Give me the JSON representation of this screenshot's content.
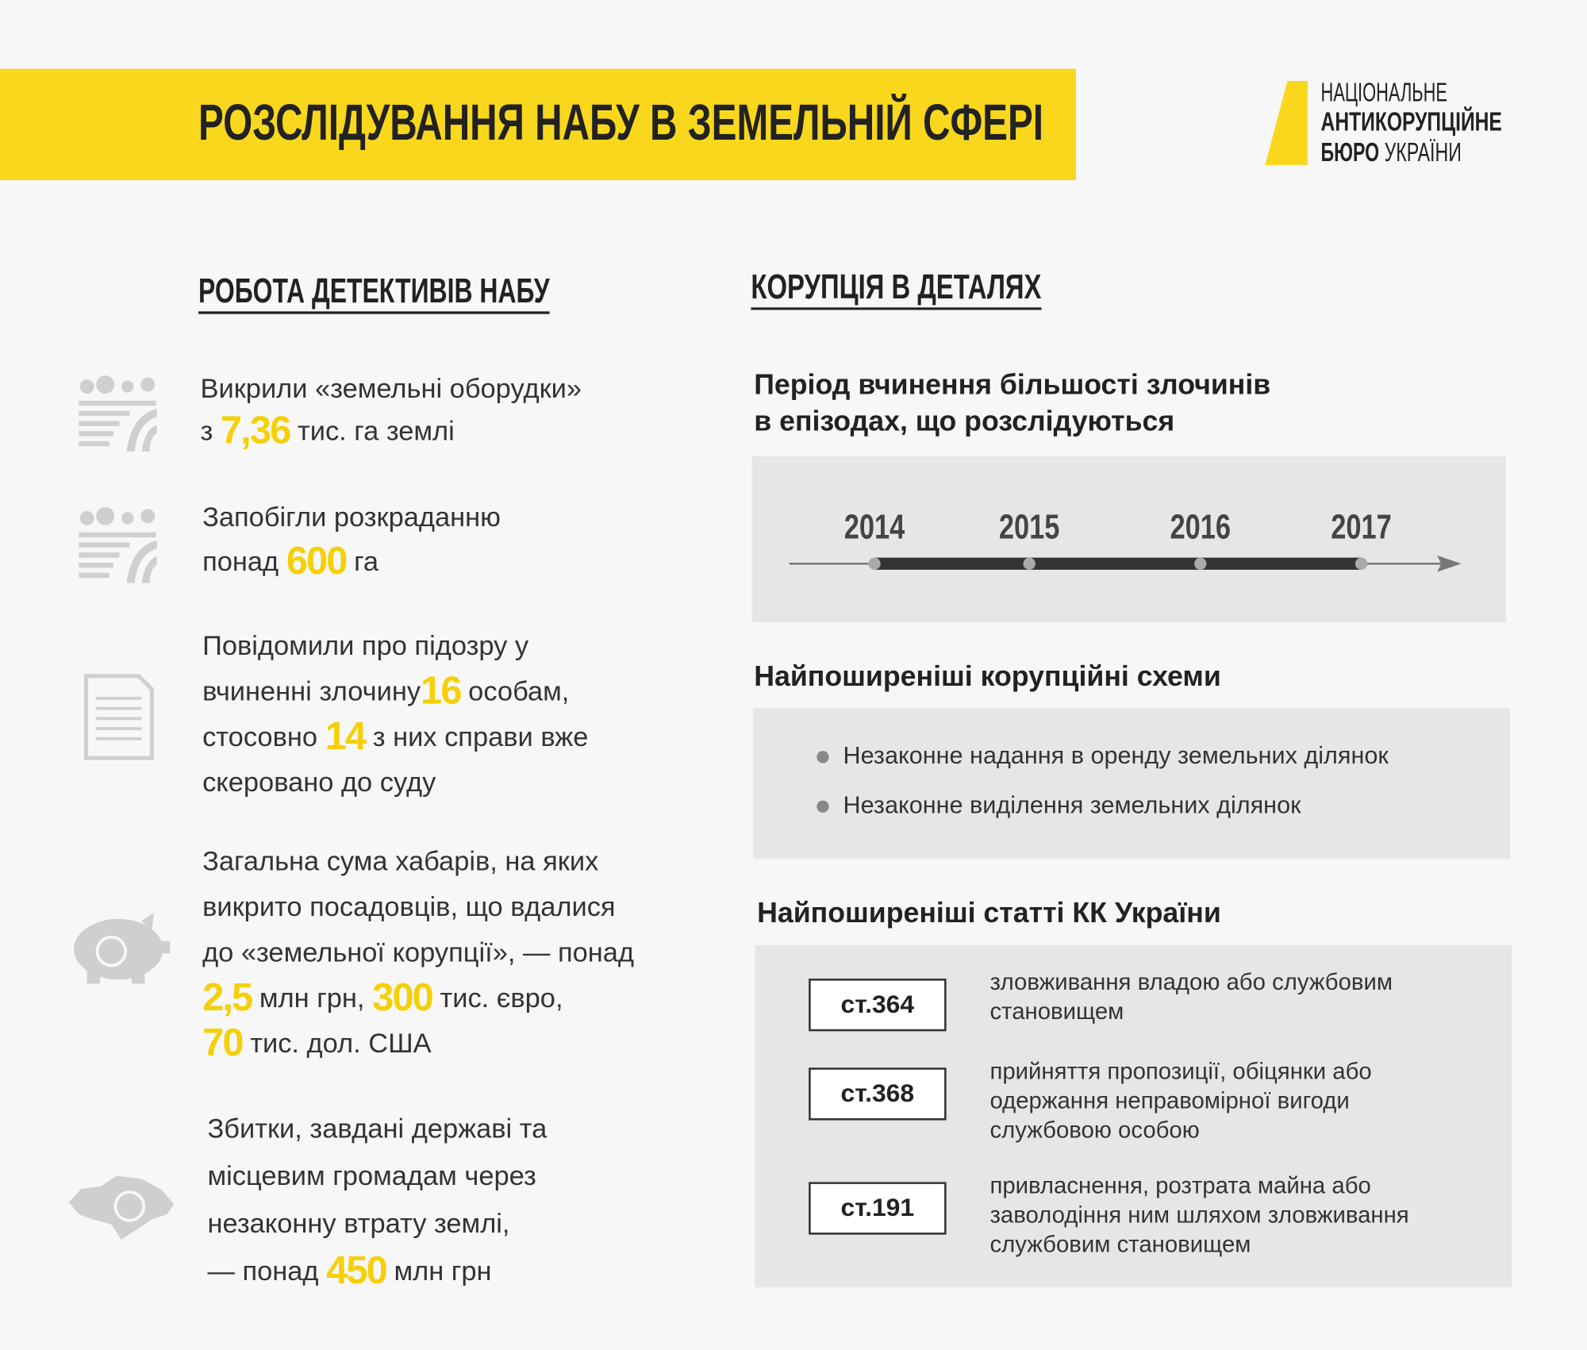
{
  "header": {
    "title": "РОЗСЛІДУВАННЯ НАБУ В ЗЕМЕЛЬНІЙ СФЕРІ",
    "logo": [
      [
        "НАЦІОНАЛЬНЕ"
      ],
      [
        "АНТИКОРУПЦІЙНЕ"
      ],
      [
        "БЮРО",
        " УКРАЇНИ"
      ]
    ]
  },
  "left": {
    "heading": "РОБОТА ДЕТЕКТИВІВ НАБУ",
    "items": [
      {
        "lines": [
          [
            "Викрили «земельні оборудки»"
          ],
          [
            "з ",
            {
              "em": "7,36"
            },
            " тис. га землі"
          ]
        ]
      },
      {
        "lines": [
          [
            "Запобігли розкраданню"
          ],
          [
            "понад ",
            {
              "em": "600"
            },
            " га"
          ]
        ]
      },
      {
        "lines": [
          [
            "Повідомили про підозру у"
          ],
          [
            "вчиненні злочину",
            {
              "em": "16"
            },
            " особам,"
          ],
          [
            "стосовно ",
            {
              "em": "14"
            },
            " з них справи вже"
          ],
          [
            "скеровано до суду"
          ]
        ]
      },
      {
        "lines": [
          [
            "Загальна сума хабарів, на яких"
          ],
          [
            "викрито посадовців, що вдалися"
          ],
          [
            "до «земельної корупції», — понад"
          ],
          [
            {
              "em": "2,5"
            },
            " млн грн, ",
            {
              "em": "300"
            },
            " тис. євро,"
          ],
          [
            {
              "em": "70"
            },
            " тис. дол. США"
          ]
        ]
      },
      {
        "lines": [
          [
            "Збитки, завдані державі та"
          ],
          [
            "місцевим громадам через"
          ],
          [
            "незаконну втрату землі,"
          ],
          [
            "— понад ",
            {
              "em": "450"
            },
            " млн грн"
          ]
        ]
      }
    ]
  },
  "right": {
    "heading": "КОРУПЦІЯ В ДЕТАЛЯХ",
    "period": {
      "title": [
        "Період вчинення більшості злочинів",
        "в епізодах, що розслідуються"
      ],
      "years": [
        "2014",
        "2015",
        "2016",
        "2017"
      ]
    },
    "schemes": {
      "title": "Найпоширеніші корупційні схеми",
      "items": [
        "Незаконне надання в оренду земельних ділянок",
        "Незаконне виділення земельних ділянок"
      ]
    },
    "articles": {
      "title": "Найпоширеніші статті КК України",
      "items": [
        {
          "code": "ст.364",
          "lines": [
            "зловживання владою або службовим",
            "становищем"
          ]
        },
        {
          "code": "ст.368",
          "lines": [
            "прийняття пропозиції, обіцянки або",
            "одержання неправомірної вигоди",
            "службовою особою"
          ]
        },
        {
          "code": "ст.191",
          "lines": [
            "привласнення, розтрата майна або",
            "заволодіння ним шляхом зловживання",
            "службовим становищем"
          ]
        }
      ]
    }
  }
}
